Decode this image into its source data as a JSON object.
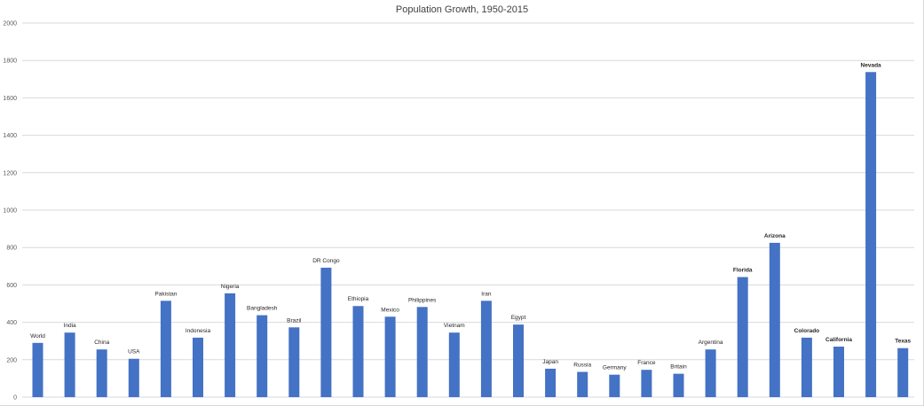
{
  "chart_data": {
    "type": "bar",
    "title": "Population Growth, 1950-2015",
    "xlabel": "",
    "ylabel": "",
    "ylim": [
      0,
      2000
    ],
    "yticks": [
      0,
      200,
      400,
      600,
      800,
      1000,
      1200,
      1400,
      1600,
      1800,
      2000
    ],
    "grid": true,
    "legend": "none",
    "bar_color": "#4472c4",
    "categories": [
      "World",
      "India",
      "China",
      "USA",
      "Pakistan",
      "Indonesia",
      "Nigeria",
      "Bangladesh",
      "Brazil",
      "DR Congo",
      "Ethiopia",
      "Mexico",
      "Philippines",
      "Vietnam",
      "Iran",
      "Egypt",
      "Japan",
      "Russia",
      "Germany",
      "France",
      "Britain",
      "Argentina",
      "Florida",
      "Arizona",
      "Colorado",
      "California",
      "Nevada",
      "Texas"
    ],
    "values": [
      290,
      345,
      255,
      205,
      515,
      318,
      555,
      438,
      373,
      692,
      487,
      430,
      482,
      345,
      515,
      388,
      152,
      135,
      120,
      146,
      125,
      255,
      642,
      825,
      318,
      270,
      1738,
      262
    ],
    "bold_labels": [
      "Florida",
      "Arizona",
      "Colorado",
      "California",
      "Nevada",
      "Texas"
    ]
  }
}
